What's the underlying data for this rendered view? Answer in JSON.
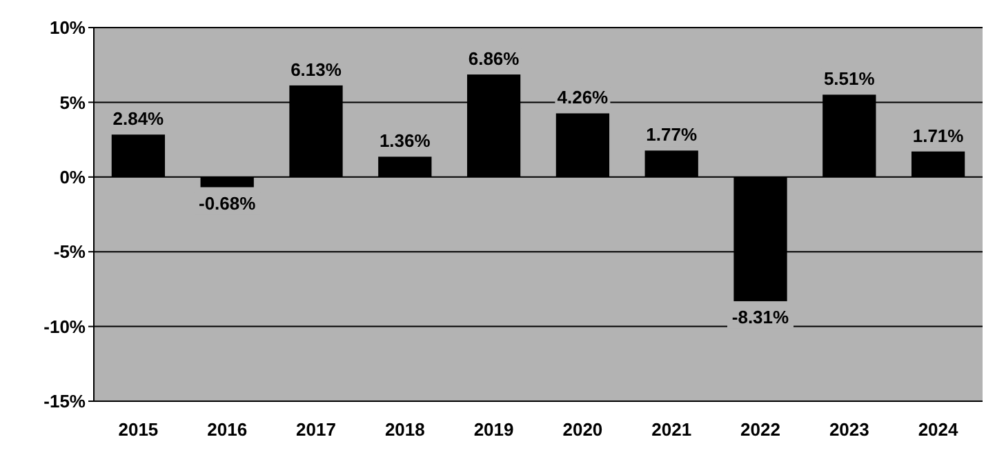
{
  "chart_data": {
    "type": "bar",
    "categories": [
      "2015",
      "2016",
      "2017",
      "2018",
      "2019",
      "2020",
      "2021",
      "2022",
      "2023",
      "2024"
    ],
    "values": [
      2.84,
      -0.68,
      6.13,
      1.36,
      6.86,
      4.26,
      1.77,
      -8.31,
      5.51,
      1.71
    ],
    "value_labels": [
      "2.84%",
      "-0.68%",
      "6.13%",
      "1.36%",
      "6.86%",
      "4.26%",
      "1.77%",
      "-8.31%",
      "5.51%",
      "1.71%"
    ],
    "color": "#000000",
    "ylim": [
      -15,
      10
    ],
    "yticks": [
      {
        "value": -15,
        "label": "-15%"
      },
      {
        "value": -10,
        "label": "-10%"
      },
      {
        "value": -5,
        "label": "-5%"
      },
      {
        "value": 0,
        "label": "0%"
      },
      {
        "value": 5,
        "label": "5%"
      },
      {
        "value": 10,
        "label": "10%"
      }
    ],
    "grid": "y"
  }
}
